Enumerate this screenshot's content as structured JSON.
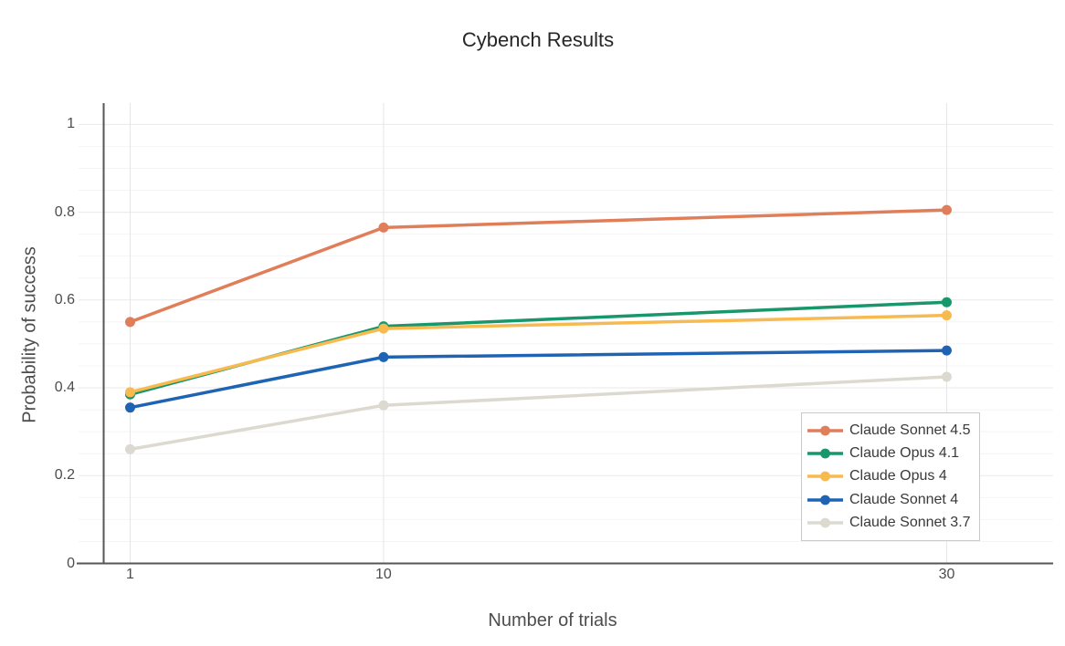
{
  "chart_data": {
    "type": "line",
    "title": "Cybench Results",
    "xlabel": "Number of trials",
    "ylabel": "Probability of success",
    "x": [
      1,
      10,
      30
    ],
    "xtick_labels": [
      "1",
      "10",
      "30"
    ],
    "yticks": [
      0,
      0.2,
      0.4,
      0.6,
      0.8,
      1
    ],
    "ytick_labels": [
      "0",
      "0.2",
      "0.4",
      "0.6",
      "0.8",
      "1"
    ],
    "minor_ytick_step": 0.05,
    "xlim": [
      0.06,
      33.78
    ],
    "ylim": [
      0,
      1.0485
    ],
    "grid": true,
    "legend_position": "inside-bottom-right",
    "series": [
      {
        "name": "Claude Sonnet 4.5",
        "color": "#E17E5A",
        "values": [
          0.55,
          0.765,
          0.805
        ]
      },
      {
        "name": "Claude Opus 4.1",
        "color": "#18976B",
        "values": [
          0.385,
          0.54,
          0.595
        ]
      },
      {
        "name": "Claude Opus 4",
        "color": "#F7BA50",
        "values": [
          0.39,
          0.535,
          0.565
        ]
      },
      {
        "name": "Claude Sonnet 4",
        "color": "#1F64B4",
        "values": [
          0.355,
          0.47,
          0.485
        ]
      },
      {
        "name": "Claude Sonnet 3.7",
        "color": "#DCDAD0",
        "values": [
          0.26,
          0.36,
          0.425
        ]
      }
    ]
  },
  "theme": {
    "background": "#ffffff",
    "axis_line_color": "#565656",
    "grid_major_color": "#e9e9e9",
    "grid_minor_color": "#f4f4f4",
    "grid_vertical_color": "#e6e6e6",
    "title_color": "#262626",
    "tick_label_color": "#4d4d4d",
    "legend_border_color": "#c9c9c9"
  }
}
